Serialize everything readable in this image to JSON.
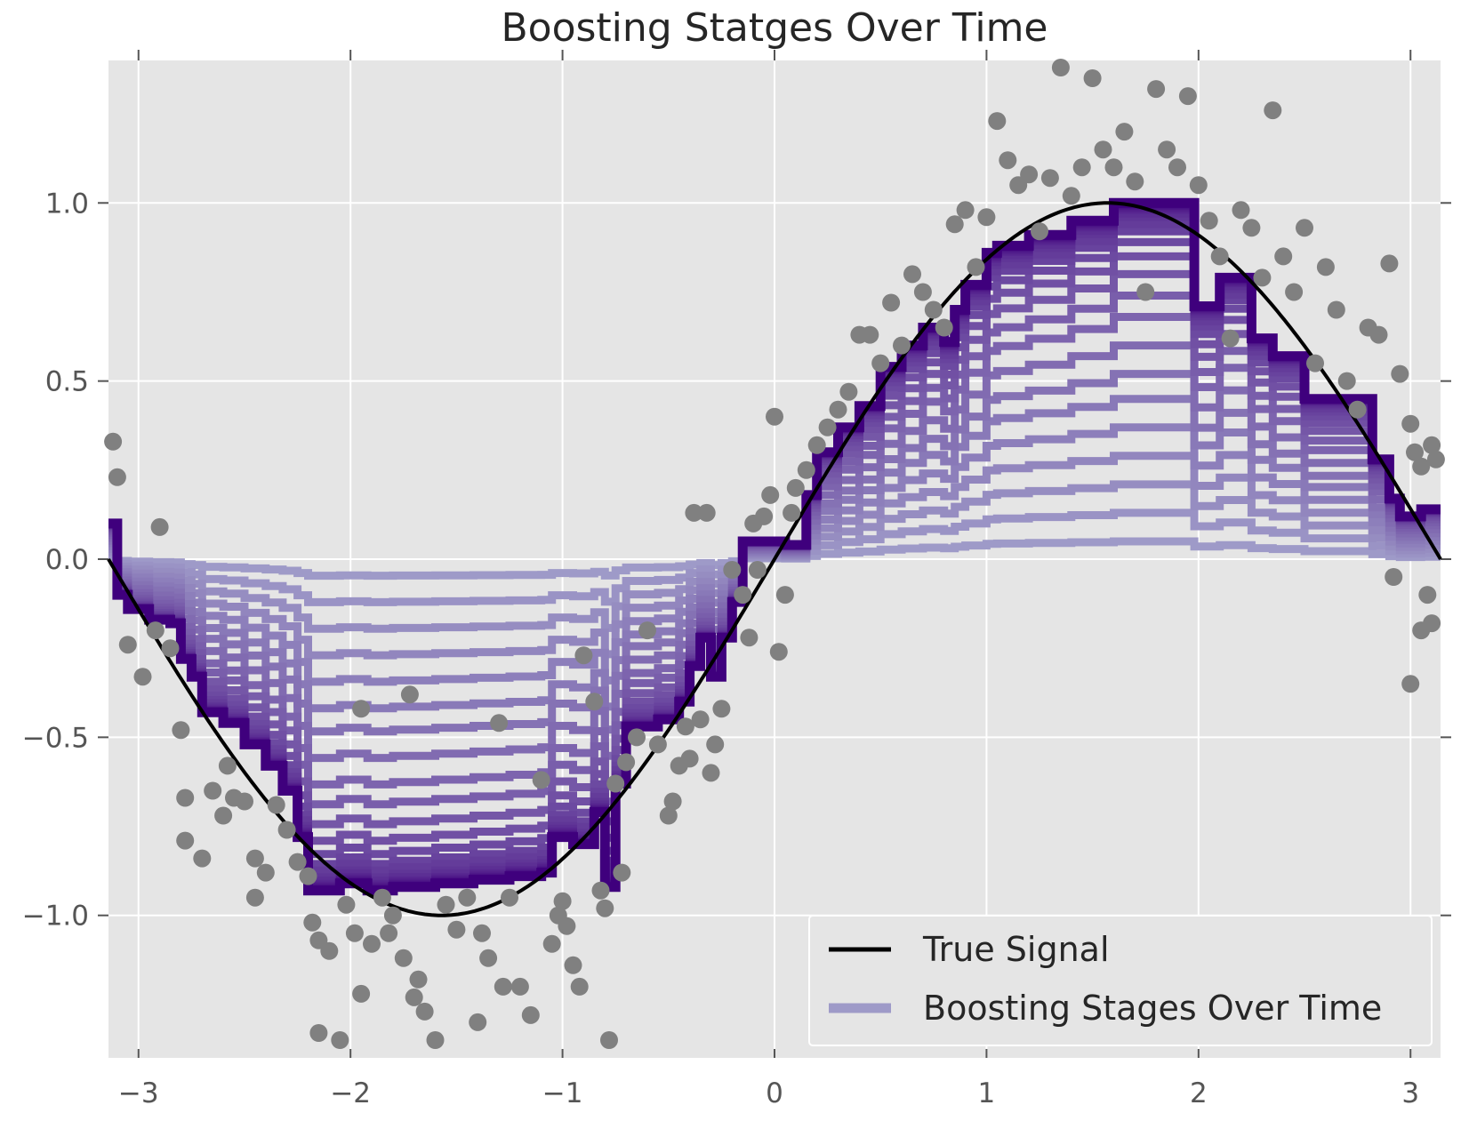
{
  "chart_data": {
    "type": "line",
    "title": "Boosting Statges Over Time",
    "xlabel": "",
    "ylabel": "",
    "xlim": [
      -3.1416,
      3.1416
    ],
    "ylim": [
      -1.4,
      1.4
    ],
    "grid": true,
    "x_ticks": [
      -3,
      -2,
      -1,
      0,
      1,
      2,
      3
    ],
    "x_tick_labels": [
      "−3",
      "−2",
      "−1",
      "0",
      "1",
      "2",
      "3"
    ],
    "y_ticks": [
      1.0,
      0.5,
      0.0,
      -0.5,
      -1.0
    ],
    "y_tick_labels": [
      "1.0",
      "0.5",
      "0.0",
      "−0.5",
      "−1.0"
    ],
    "legend": {
      "placement": "lower-right",
      "entries": [
        {
          "label": "True Signal",
          "color": "#000000"
        },
        {
          "label": "Boosting Stages Over Time",
          "color": "#9e9ac8"
        }
      ]
    },
    "colors": {
      "axes_background": "#e5e5e5",
      "grid": "#ffffff",
      "scatter": "#808080",
      "true_signal": "#000000",
      "stage_start": "#9e9ac8",
      "stage_end": "#3f007d"
    },
    "series": [
      {
        "name": "True Signal",
        "kind": "line",
        "function": "sin(x)",
        "color": "#000000"
      },
      {
        "name": "Boosting Stages Over Time",
        "kind": "step-lines",
        "stage_count": 24,
        "stage_fractions": [
          0.05,
          0.13,
          0.21,
          0.29,
          0.37,
          0.45,
          0.52,
          0.6,
          0.68,
          0.74,
          0.8,
          0.85,
          0.89,
          0.92,
          0.94,
          0.96,
          0.97,
          0.98,
          0.985,
          0.99,
          0.993,
          0.996,
          0.998,
          1.0
        ],
        "final_stage_steps": [
          {
            "x": -3.14,
            "y": 0.1
          },
          {
            "x": -3.1,
            "y": -0.1
          },
          {
            "x": -3.05,
            "y": -0.14
          },
          {
            "x": -2.95,
            "y": -0.17
          },
          {
            "x": -2.85,
            "y": -0.18
          },
          {
            "x": -2.8,
            "y": -0.28
          },
          {
            "x": -2.75,
            "y": -0.33
          },
          {
            "x": -2.7,
            "y": -0.43
          },
          {
            "x": -2.6,
            "y": -0.46
          },
          {
            "x": -2.5,
            "y": -0.52
          },
          {
            "x": -2.4,
            "y": -0.58
          },
          {
            "x": -2.32,
            "y": -0.65
          },
          {
            "x": -2.25,
            "y": -0.78
          },
          {
            "x": -2.2,
            "y": -0.93
          },
          {
            "x": -2.05,
            "y": -0.91
          },
          {
            "x": -1.92,
            "y": -0.93
          },
          {
            "x": -1.8,
            "y": -0.92
          },
          {
            "x": -1.6,
            "y": -0.91
          },
          {
            "x": -1.42,
            "y": -0.9
          },
          {
            "x": -1.25,
            "y": -0.89
          },
          {
            "x": -1.1,
            "y": -0.88
          },
          {
            "x": -1.05,
            "y": -0.78
          },
          {
            "x": -0.95,
            "y": -0.8
          },
          {
            "x": -0.85,
            "y": -0.71
          },
          {
            "x": -0.8,
            "y": -0.92
          },
          {
            "x": -0.75,
            "y": -0.63
          },
          {
            "x": -0.7,
            "y": -0.47
          },
          {
            "x": -0.55,
            "y": -0.45
          },
          {
            "x": -0.45,
            "y": -0.4
          },
          {
            "x": -0.4,
            "y": -0.3
          },
          {
            "x": -0.35,
            "y": -0.22
          },
          {
            "x": -0.3,
            "y": -0.33
          },
          {
            "x": -0.25,
            "y": -0.22
          },
          {
            "x": -0.2,
            "y": -0.12
          },
          {
            "x": -0.15,
            "y": 0.05
          },
          {
            "x": 0.05,
            "y": 0.04
          },
          {
            "x": 0.15,
            "y": 0.18
          },
          {
            "x": 0.2,
            "y": 0.3
          },
          {
            "x": 0.3,
            "y": 0.37
          },
          {
            "x": 0.4,
            "y": 0.43
          },
          {
            "x": 0.5,
            "y": 0.54
          },
          {
            "x": 0.6,
            "y": 0.6
          },
          {
            "x": 0.7,
            "y": 0.65
          },
          {
            "x": 0.8,
            "y": 0.61
          },
          {
            "x": 0.85,
            "y": 0.7
          },
          {
            "x": 0.9,
            "y": 0.77
          },
          {
            "x": 1.0,
            "y": 0.86
          },
          {
            "x": 1.05,
            "y": 0.88
          },
          {
            "x": 1.2,
            "y": 0.91
          },
          {
            "x": 1.4,
            "y": 0.95
          },
          {
            "x": 1.6,
            "y": 1.0
          },
          {
            "x": 1.98,
            "y": 0.71
          },
          {
            "x": 2.1,
            "y": 0.79
          },
          {
            "x": 2.25,
            "y": 0.62
          },
          {
            "x": 2.35,
            "y": 0.57
          },
          {
            "x": 2.5,
            "y": 0.45
          },
          {
            "x": 2.82,
            "y": 0.28
          },
          {
            "x": 2.9,
            "y": 0.17
          },
          {
            "x": 2.95,
            "y": 0.12
          },
          {
            "x": 3.05,
            "y": 0.14
          },
          {
            "x": 3.14,
            "y": 0.14
          }
        ]
      },
      {
        "name": "",
        "kind": "scatter",
        "color": "#808080",
        "points": [
          [
            -3.12,
            0.33
          ],
          [
            -3.1,
            0.23
          ],
          [
            -3.05,
            -0.24
          ],
          [
            -2.98,
            -0.33
          ],
          [
            -2.92,
            -0.2
          ],
          [
            -2.9,
            0.09
          ],
          [
            -2.85,
            -0.25
          ],
          [
            -2.8,
            -0.48
          ],
          [
            -2.78,
            -0.67
          ],
          [
            -2.78,
            -0.79
          ],
          [
            -2.7,
            -0.84
          ],
          [
            -2.65,
            -0.65
          ],
          [
            -2.6,
            -0.72
          ],
          [
            -2.58,
            -0.58
          ],
          [
            -2.55,
            -0.67
          ],
          [
            -2.5,
            -0.68
          ],
          [
            -2.45,
            -0.84
          ],
          [
            -2.45,
            -0.95
          ],
          [
            -2.4,
            -0.88
          ],
          [
            -2.35,
            -0.69
          ],
          [
            -2.3,
            -0.76
          ],
          [
            -2.25,
            -0.85
          ],
          [
            -2.2,
            -0.89
          ],
          [
            -2.18,
            -1.02
          ],
          [
            -2.15,
            -1.07
          ],
          [
            -2.15,
            -1.33
          ],
          [
            -2.1,
            -1.1
          ],
          [
            -2.05,
            -1.35
          ],
          [
            -2.02,
            -0.97
          ],
          [
            -1.98,
            -1.05
          ],
          [
            -1.95,
            -0.42
          ],
          [
            -1.95,
            -1.22
          ],
          [
            -1.9,
            -1.08
          ],
          [
            -1.85,
            -0.95
          ],
          [
            -1.82,
            -1.05
          ],
          [
            -1.8,
            -1.0
          ],
          [
            -1.75,
            -1.12
          ],
          [
            -1.72,
            -0.38
          ],
          [
            -1.7,
            -1.23
          ],
          [
            -1.68,
            -1.18
          ],
          [
            -1.65,
            -1.27
          ],
          [
            -1.6,
            -1.35
          ],
          [
            -1.55,
            -0.97
          ],
          [
            -1.5,
            -1.04
          ],
          [
            -1.45,
            -0.95
          ],
          [
            -1.4,
            -1.3
          ],
          [
            -1.38,
            -1.05
          ],
          [
            -1.35,
            -1.12
          ],
          [
            -1.3,
            -0.46
          ],
          [
            -1.28,
            -1.2
          ],
          [
            -1.25,
            -0.95
          ],
          [
            -1.2,
            -1.2
          ],
          [
            -1.15,
            -1.28
          ],
          [
            -1.1,
            -0.62
          ],
          [
            -1.05,
            -1.08
          ],
          [
            -1.02,
            -1.0
          ],
          [
            -1.0,
            -0.96
          ],
          [
            -0.98,
            -1.03
          ],
          [
            -0.95,
            -1.14
          ],
          [
            -0.92,
            -1.2
          ],
          [
            -0.9,
            -0.27
          ],
          [
            -0.85,
            -0.4
          ],
          [
            -0.82,
            -0.93
          ],
          [
            -0.8,
            -0.98
          ],
          [
            -0.78,
            -1.35
          ],
          [
            -0.75,
            -0.63
          ],
          [
            -0.72,
            -0.88
          ],
          [
            -0.7,
            -0.57
          ],
          [
            -0.65,
            -0.5
          ],
          [
            -0.6,
            -0.2
          ],
          [
            -0.55,
            -0.52
          ],
          [
            -0.5,
            -0.72
          ],
          [
            -0.48,
            -0.68
          ],
          [
            -0.45,
            -0.58
          ],
          [
            -0.42,
            -0.47
          ],
          [
            -0.4,
            -0.56
          ],
          [
            -0.35,
            -0.45
          ],
          [
            -0.3,
            -0.6
          ],
          [
            -0.28,
            -0.52
          ],
          [
            -0.25,
            -0.42
          ],
          [
            -0.38,
            0.13
          ],
          [
            -0.32,
            0.13
          ],
          [
            -0.2,
            -0.03
          ],
          [
            -0.15,
            -0.1
          ],
          [
            -0.12,
            -0.22
          ],
          [
            -0.1,
            0.1
          ],
          [
            -0.08,
            -0.03
          ],
          [
            -0.05,
            0.12
          ],
          [
            -0.02,
            0.18
          ],
          [
            0.0,
            0.4
          ],
          [
            0.02,
            -0.26
          ],
          [
            0.05,
            -0.1
          ],
          [
            0.08,
            0.13
          ],
          [
            0.1,
            0.2
          ],
          [
            0.15,
            0.25
          ],
          [
            0.2,
            0.32
          ],
          [
            0.25,
            0.37
          ],
          [
            0.3,
            0.42
          ],
          [
            0.35,
            0.47
          ],
          [
            0.4,
            0.63
          ],
          [
            0.45,
            0.63
          ],
          [
            0.5,
            0.55
          ],
          [
            0.55,
            0.72
          ],
          [
            0.6,
            0.6
          ],
          [
            0.65,
            0.8
          ],
          [
            0.7,
            0.75
          ],
          [
            0.75,
            0.7
          ],
          [
            0.8,
            0.65
          ],
          [
            0.85,
            0.94
          ],
          [
            0.9,
            0.98
          ],
          [
            0.95,
            0.82
          ],
          [
            1.0,
            0.96
          ],
          [
            1.05,
            1.23
          ],
          [
            1.1,
            1.12
          ],
          [
            1.15,
            1.05
          ],
          [
            1.2,
            1.08
          ],
          [
            1.25,
            0.92
          ],
          [
            1.3,
            1.07
          ],
          [
            1.35,
            1.38
          ],
          [
            1.4,
            1.02
          ],
          [
            1.45,
            1.1
          ],
          [
            1.5,
            1.35
          ],
          [
            1.55,
            1.15
          ],
          [
            1.6,
            1.1
          ],
          [
            1.65,
            1.2
          ],
          [
            1.7,
            1.06
          ],
          [
            1.75,
            0.75
          ],
          [
            1.8,
            1.32
          ],
          [
            1.85,
            1.15
          ],
          [
            1.9,
            1.1
          ],
          [
            1.95,
            1.3
          ],
          [
            2.0,
            1.05
          ],
          [
            2.05,
            0.95
          ],
          [
            2.1,
            0.85
          ],
          [
            2.15,
            0.62
          ],
          [
            2.2,
            0.98
          ],
          [
            2.25,
            0.93
          ],
          [
            2.3,
            0.79
          ],
          [
            2.35,
            1.26
          ],
          [
            2.4,
            0.85
          ],
          [
            2.45,
            0.75
          ],
          [
            2.5,
            0.93
          ],
          [
            2.55,
            0.55
          ],
          [
            2.6,
            0.82
          ],
          [
            2.65,
            0.7
          ],
          [
            2.7,
            0.5
          ],
          [
            2.75,
            0.42
          ],
          [
            2.8,
            0.65
          ],
          [
            2.85,
            0.63
          ],
          [
            2.9,
            0.83
          ],
          [
            2.92,
            -0.05
          ],
          [
            2.95,
            0.52
          ],
          [
            3.0,
            0.38
          ],
          [
            3.02,
            0.3
          ],
          [
            3.05,
            0.26
          ],
          [
            3.05,
            -0.2
          ],
          [
            3.08,
            -0.1
          ],
          [
            3.1,
            -0.18
          ],
          [
            3.1,
            0.32
          ],
          [
            3.0,
            -0.35
          ],
          [
            3.12,
            0.28
          ]
        ]
      }
    ]
  }
}
